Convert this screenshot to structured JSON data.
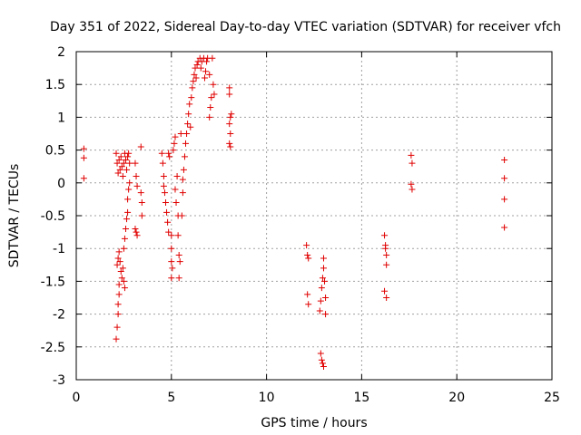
{
  "chart_data": {
    "type": "scatter",
    "title": "Day 351 of 2022, Sidereal Day-to-day VTEC variation (SDTVAR) for receiver vfch",
    "xlabel": "GPS time / hours",
    "ylabel": "SDTVAR / TECUs",
    "xlim": [
      0,
      25
    ],
    "ylim": [
      -3,
      2
    ],
    "xticks": [
      "0",
      "5",
      "10",
      "15",
      "20",
      "25"
    ],
    "yticks": [
      "2",
      "1.5",
      "1",
      "0.5",
      "0",
      "-0.5",
      "-1",
      "-1.5",
      "-2",
      "-2.5",
      "-3"
    ],
    "grid": true,
    "marker": "plus",
    "series": [
      {
        "name": "SDTVAR",
        "color": "#e00000",
        "points": [
          [
            0.4,
            0.52
          ],
          [
            0.4,
            0.38
          ],
          [
            0.4,
            0.07
          ],
          [
            2.1,
            -2.38
          ],
          [
            2.15,
            -2.2
          ],
          [
            2.2,
            -2.0
          ],
          [
            2.2,
            -1.85
          ],
          [
            2.25,
            -1.7
          ],
          [
            2.25,
            -1.55
          ],
          [
            2.15,
            -1.25
          ],
          [
            2.2,
            -1.15
          ],
          [
            2.25,
            -1.05
          ],
          [
            2.3,
            -1.2
          ],
          [
            2.35,
            -1.35
          ],
          [
            2.4,
            -1.45
          ],
          [
            2.45,
            -1.3
          ],
          [
            2.5,
            -1.5
          ],
          [
            2.55,
            -1.6
          ],
          [
            2.5,
            -1.0
          ],
          [
            2.55,
            -0.85
          ],
          [
            2.6,
            -0.7
          ],
          [
            2.65,
            -0.55
          ],
          [
            2.7,
            -0.45
          ],
          [
            2.7,
            -0.25
          ],
          [
            2.75,
            -0.1
          ],
          [
            2.8,
            0.0
          ],
          [
            2.1,
            0.45
          ],
          [
            2.15,
            0.3
          ],
          [
            2.2,
            0.15
          ],
          [
            2.25,
            0.35
          ],
          [
            2.3,
            0.2
          ],
          [
            2.35,
            0.4
          ],
          [
            2.4,
            0.25
          ],
          [
            2.45,
            0.1
          ],
          [
            2.5,
            0.3
          ],
          [
            2.55,
            0.45
          ],
          [
            2.6,
            0.35
          ],
          [
            2.65,
            0.2
          ],
          [
            2.7,
            0.4
          ],
          [
            2.75,
            0.45
          ],
          [
            2.8,
            0.3
          ],
          [
            3.1,
            0.3
          ],
          [
            3.15,
            0.1
          ],
          [
            3.2,
            -0.05
          ],
          [
            3.1,
            -0.7
          ],
          [
            3.2,
            -0.8
          ],
          [
            3.15,
            -0.75
          ],
          [
            3.4,
            0.55
          ],
          [
            3.4,
            -0.15
          ],
          [
            3.45,
            -0.3
          ],
          [
            3.45,
            -0.5
          ],
          [
            4.5,
            0.45
          ],
          [
            4.55,
            0.3
          ],
          [
            4.6,
            0.1
          ],
          [
            4.6,
            -0.05
          ],
          [
            4.65,
            -0.15
          ],
          [
            4.7,
            -0.3
          ],
          [
            4.75,
            -0.45
          ],
          [
            4.8,
            -0.6
          ],
          [
            4.85,
            -0.75
          ],
          [
            4.85,
            0.45
          ],
          [
            4.9,
            0.4
          ],
          [
            5.0,
            -0.8
          ],
          [
            5.0,
            -1.0
          ],
          [
            5.0,
            -1.2
          ],
          [
            5.0,
            -1.45
          ],
          [
            5.05,
            -1.3
          ],
          [
            5.1,
            0.5
          ],
          [
            5.15,
            0.6
          ],
          [
            5.2,
            0.7
          ],
          [
            5.2,
            -0.1
          ],
          [
            5.25,
            -0.3
          ],
          [
            5.3,
            0.1
          ],
          [
            5.35,
            -0.5
          ],
          [
            5.35,
            -0.8
          ],
          [
            5.4,
            -1.1
          ],
          [
            5.4,
            -1.45
          ],
          [
            5.45,
            -1.2
          ],
          [
            5.5,
            0.75
          ],
          [
            5.55,
            -0.5
          ],
          [
            5.6,
            -0.15
          ],
          [
            5.6,
            0.05
          ],
          [
            5.65,
            0.2
          ],
          [
            5.7,
            0.4
          ],
          [
            5.75,
            0.6
          ],
          [
            5.8,
            0.75
          ],
          [
            5.85,
            0.9
          ],
          [
            5.9,
            1.05
          ],
          [
            5.95,
            1.2
          ],
          [
            6.0,
            0.85
          ],
          [
            6.05,
            1.3
          ],
          [
            6.1,
            1.45
          ],
          [
            6.15,
            1.55
          ],
          [
            6.2,
            1.65
          ],
          [
            6.25,
            1.75
          ],
          [
            6.3,
            1.6
          ],
          [
            6.35,
            1.8
          ],
          [
            6.4,
            1.85
          ],
          [
            6.5,
            1.9
          ],
          [
            6.55,
            1.75
          ],
          [
            6.6,
            1.85
          ],
          [
            6.7,
            1.9
          ],
          [
            6.75,
            1.6
          ],
          [
            6.8,
            1.7
          ],
          [
            6.85,
            1.85
          ],
          [
            6.9,
            1.9
          ],
          [
            7.0,
            1.65
          ],
          [
            7.0,
            1.0
          ],
          [
            7.05,
            1.15
          ],
          [
            7.1,
            1.3
          ],
          [
            7.15,
            1.9
          ],
          [
            7.2,
            1.5
          ],
          [
            7.25,
            1.35
          ],
          [
            8.05,
            1.45
          ],
          [
            8.05,
            1.35
          ],
          [
            8.1,
            1.0
          ],
          [
            8.05,
            0.9
          ],
          [
            8.1,
            0.75
          ],
          [
            8.05,
            0.6
          ],
          [
            8.15,
            1.05
          ],
          [
            8.1,
            0.55
          ],
          [
            12.1,
            -0.95
          ],
          [
            12.15,
            -1.1
          ],
          [
            12.2,
            -1.15
          ],
          [
            12.15,
            -1.7
          ],
          [
            12.2,
            -1.85
          ],
          [
            12.8,
            -1.95
          ],
          [
            12.85,
            -1.8
          ],
          [
            12.9,
            -1.6
          ],
          [
            12.95,
            -1.45
          ],
          [
            13.0,
            -1.3
          ],
          [
            13.0,
            -1.15
          ],
          [
            13.05,
            -1.5
          ],
          [
            13.1,
            -1.75
          ],
          [
            13.1,
            -2.0
          ],
          [
            12.85,
            -2.6
          ],
          [
            12.9,
            -2.7
          ],
          [
            12.95,
            -2.75
          ],
          [
            13.0,
            -2.8
          ],
          [
            16.2,
            -0.8
          ],
          [
            16.25,
            -0.95
          ],
          [
            16.3,
            -1.1
          ],
          [
            16.3,
            -1.25
          ],
          [
            16.25,
            -1.0
          ],
          [
            16.2,
            -1.65
          ],
          [
            16.3,
            -1.75
          ],
          [
            17.6,
            0.42
          ],
          [
            17.65,
            0.3
          ],
          [
            17.6,
            -0.02
          ],
          [
            17.65,
            -0.1
          ],
          [
            22.5,
            0.35
          ],
          [
            22.5,
            0.07
          ],
          [
            22.5,
            -0.25
          ],
          [
            22.5,
            -0.68
          ]
        ]
      }
    ]
  }
}
